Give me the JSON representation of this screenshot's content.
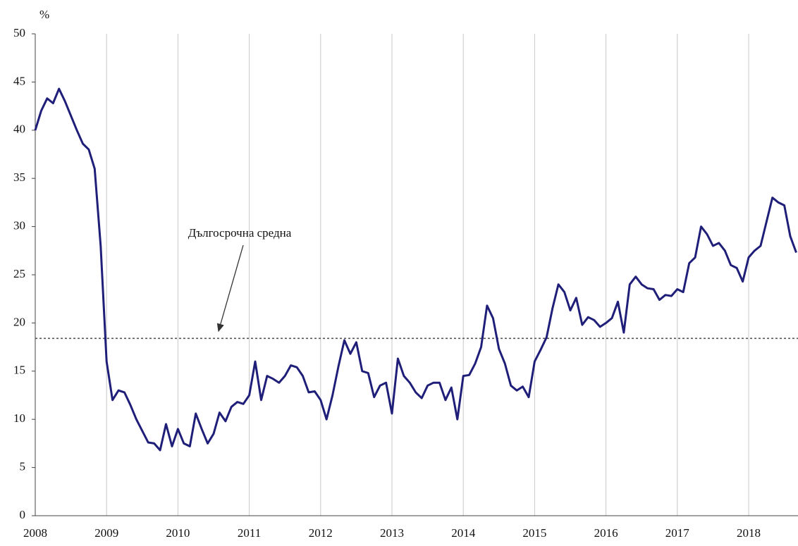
{
  "chart_data": {
    "type": "line",
    "y_label": "%",
    "annotation": "Дългосрочна средна",
    "reference_line": 18.4,
    "reference_color": "#555555",
    "categories": [
      "2008",
      null,
      null,
      null,
      null,
      null,
      null,
      null,
      null,
      null,
      null,
      null,
      "2009",
      null,
      null,
      null,
      null,
      null,
      null,
      null,
      null,
      null,
      null,
      null,
      "2010",
      null,
      null,
      null,
      null,
      null,
      null,
      null,
      null,
      null,
      null,
      null,
      "2011",
      null,
      null,
      null,
      null,
      null,
      null,
      null,
      null,
      null,
      null,
      null,
      "2012",
      null,
      null,
      null,
      null,
      null,
      null,
      null,
      null,
      null,
      null,
      null,
      "2013",
      null,
      null,
      null,
      null,
      null,
      null,
      null,
      null,
      null,
      null,
      null,
      "2014",
      null,
      null,
      null,
      null,
      null,
      null,
      null,
      null,
      null,
      null,
      null,
      "2015",
      null,
      null,
      null,
      null,
      null,
      null,
      null,
      null,
      null,
      null,
      null,
      "2016",
      null,
      null,
      null,
      null,
      null,
      null,
      null,
      null,
      null,
      null,
      null,
      "2017",
      null,
      null,
      null,
      null,
      null,
      null,
      null,
      null,
      null,
      null,
      null,
      "2018",
      null,
      null,
      null,
      null,
      null,
      null,
      null,
      null
    ],
    "series": [
      {
        "color": "#1f1f7a",
        "values": [
          40,
          42,
          43.3,
          42.8,
          44.3,
          43,
          41.5,
          40,
          38.6,
          38,
          36,
          28,
          16,
          12,
          13,
          12.8,
          11.5,
          10,
          8.8,
          7.6,
          7.5,
          6.8,
          9.5,
          7.2,
          9,
          7.5,
          7.2,
          10.6,
          9,
          7.5,
          8.5,
          10.7,
          9.8,
          11.3,
          11.8,
          11.6,
          12.5,
          16,
          12,
          14.5,
          14.2,
          13.8,
          14.5,
          15.6,
          15.4,
          14.5,
          12.8,
          12.9,
          12,
          10,
          12.5,
          15.5,
          18.2,
          16.8,
          18,
          15,
          14.8,
          12.3,
          13.5,
          13.8,
          10.6,
          16.3,
          14.5,
          13.8,
          12.8,
          12.2,
          13.5,
          13.8,
          13.8,
          12,
          13.3,
          10,
          14.5,
          14.6,
          15.8,
          17.5,
          21.8,
          20.5,
          17.3,
          15.8,
          13.5,
          13,
          13.4,
          12.3,
          16,
          17.2,
          18.5,
          21.5,
          24,
          23.2,
          21.3,
          22.6,
          19.8,
          20.6,
          20.3,
          19.6,
          20,
          20.5,
          22.2,
          19,
          24,
          24.8,
          24,
          23.6,
          23.5,
          22.4,
          22.9,
          22.8,
          23.5,
          23.2,
          26.2,
          26.8,
          30,
          29.2,
          28,
          28.3,
          27.5,
          26,
          25.7,
          24.3,
          26.8,
          27.5,
          28,
          30.5,
          33,
          32.5,
          32.2,
          29,
          27.3
        ]
      }
    ],
    "ylim": [
      0,
      50
    ],
    "yticks": [
      0,
      5,
      10,
      15,
      20,
      25,
      30,
      35,
      40,
      45,
      50
    ],
    "grid": true
  }
}
